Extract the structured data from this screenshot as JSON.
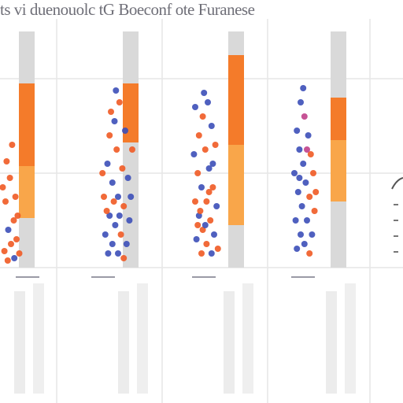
{
  "chart_data": {
    "type": "scatter",
    "title": "ts vi duenouolc tG Boeconf ote Furanese",
    "xlabel": "",
    "ylabel": "",
    "grid": true,
    "colors": {
      "bar_orange": "#f47b2a",
      "bar_light_orange": "#f9a64a",
      "bar_grey": "#d9d9d9",
      "dot_blue": "#3c4fb8",
      "dot_orange": "#f05a24",
      "dot_pink": "#c0408a",
      "grid": "#e6e6e6",
      "text": "#6f6f78"
    },
    "panels": [
      {
        "label": "",
        "bar_stack": [
          {
            "segment": "grey",
            "value": 0.22
          },
          {
            "segment": "orange",
            "value": 0.35
          },
          {
            "segment": "light_orange",
            "value": 0.22
          },
          {
            "segment": "grey",
            "value": 0.21
          }
        ],
        "dots": [
          [
            0.12,
            0.55,
            "o"
          ],
          [
            0.18,
            0.62,
            "o"
          ],
          [
            0.22,
            0.48,
            "o"
          ],
          [
            0.28,
            0.7,
            "o"
          ],
          [
            0.1,
            0.72,
            "o"
          ],
          [
            0.25,
            0.8,
            "o"
          ],
          [
            0.15,
            0.84,
            "b"
          ],
          [
            0.32,
            0.78,
            "o"
          ],
          [
            0.2,
            0.9,
            "o"
          ],
          [
            0.3,
            0.88,
            "o"
          ],
          [
            0.08,
            0.93,
            "o"
          ],
          [
            0.35,
            0.94,
            "o"
          ],
          [
            0.26,
            0.96,
            "b"
          ],
          [
            0.14,
            0.97,
            "o"
          ],
          [
            0.05,
            0.66,
            "o"
          ]
        ]
      },
      {
        "label": "",
        "bar_stack": [
          {
            "segment": "grey",
            "value": 0.22
          },
          {
            "segment": "orange",
            "value": 0.25
          },
          {
            "segment": "grey",
            "value": 0.53
          }
        ],
        "dots": [
          [
            0.55,
            0.38,
            "b"
          ],
          [
            0.62,
            0.3,
            "o"
          ],
          [
            0.48,
            0.44,
            "o"
          ],
          [
            0.7,
            0.42,
            "b"
          ],
          [
            0.58,
            0.5,
            "o"
          ],
          [
            0.45,
            0.56,
            "b"
          ],
          [
            0.66,
            0.58,
            "o"
          ],
          [
            0.52,
            0.64,
            "b"
          ],
          [
            0.74,
            0.62,
            "b"
          ],
          [
            0.4,
            0.7,
            "o"
          ],
          [
            0.6,
            0.7,
            "b"
          ],
          [
            0.68,
            0.74,
            "o"
          ],
          [
            0.48,
            0.78,
            "b"
          ],
          [
            0.56,
            0.82,
            "b"
          ],
          [
            0.76,
            0.8,
            "b"
          ],
          [
            0.42,
            0.86,
            "b"
          ],
          [
            0.64,
            0.86,
            "o"
          ],
          [
            0.52,
            0.9,
            "b"
          ],
          [
            0.72,
            0.9,
            "b"
          ],
          [
            0.46,
            0.94,
            "b"
          ],
          [
            0.6,
            0.94,
            "b"
          ],
          [
            0.68,
            0.96,
            "o"
          ],
          [
            0.38,
            0.6,
            "o"
          ],
          [
            0.8,
            0.5,
            "o"
          ],
          [
            0.57,
            0.25,
            "b"
          ],
          [
            0.5,
            0.34,
            "o"
          ],
          [
            0.78,
            0.7,
            "b"
          ],
          [
            0.44,
            0.76,
            "o"
          ],
          [
            0.62,
            0.78,
            "b"
          ],
          [
            0.54,
            0.72,
            "o"
          ]
        ]
      },
      {
        "label": "",
        "bar_stack": [
          {
            "segment": "grey",
            "value": 0.1
          },
          {
            "segment": "orange",
            "value": 0.38
          },
          {
            "segment": "light_orange",
            "value": 0.34
          },
          {
            "segment": "grey",
            "value": 0.18
          }
        ],
        "dots": [
          [
            0.3,
            0.32,
            "b"
          ],
          [
            0.42,
            0.36,
            "o"
          ],
          [
            0.5,
            0.3,
            "b"
          ],
          [
            0.36,
            0.44,
            "o"
          ],
          [
            0.56,
            0.4,
            "b"
          ],
          [
            0.28,
            0.52,
            "b"
          ],
          [
            0.46,
            0.5,
            "o"
          ],
          [
            0.62,
            0.48,
            "o"
          ],
          [
            0.34,
            0.6,
            "o"
          ],
          [
            0.52,
            0.58,
            "b"
          ],
          [
            0.4,
            0.66,
            "b"
          ],
          [
            0.58,
            0.66,
            "o"
          ],
          [
            0.3,
            0.72,
            "o"
          ],
          [
            0.48,
            0.72,
            "o"
          ],
          [
            0.64,
            0.74,
            "b"
          ],
          [
            0.36,
            0.78,
            "b"
          ],
          [
            0.54,
            0.8,
            "o"
          ],
          [
            0.42,
            0.84,
            "o"
          ],
          [
            0.6,
            0.86,
            "b"
          ],
          [
            0.32,
            0.88,
            "b"
          ],
          [
            0.48,
            0.9,
            "o"
          ],
          [
            0.56,
            0.94,
            "b"
          ],
          [
            0.4,
            0.94,
            "o"
          ],
          [
            0.66,
            0.92,
            "o"
          ],
          [
            0.44,
            0.26,
            "b"
          ],
          [
            0.38,
            0.76,
            "o"
          ],
          [
            0.52,
            0.68,
            "o"
          ],
          [
            0.46,
            0.82,
            "b"
          ],
          [
            0.58,
            0.56,
            "b"
          ],
          [
            0.34,
            0.82,
            "o"
          ]
        ]
      },
      {
        "label": "",
        "bar_stack": [
          {
            "segment": "grey",
            "value": 0.28
          },
          {
            "segment": "orange",
            "value": 0.18
          },
          {
            "segment": "light_orange",
            "value": 0.26
          },
          {
            "segment": "grey",
            "value": 0.28
          }
        ],
        "dots": [
          [
            0.4,
            0.3,
            "b"
          ],
          [
            0.46,
            0.36,
            "p"
          ],
          [
            0.34,
            0.42,
            "b"
          ],
          [
            0.52,
            0.44,
            "b"
          ],
          [
            0.38,
            0.5,
            "b"
          ],
          [
            0.56,
            0.52,
            "o"
          ],
          [
            0.44,
            0.56,
            "b"
          ],
          [
            0.3,
            0.6,
            "b"
          ],
          [
            0.6,
            0.6,
            "o"
          ],
          [
            0.48,
            0.64,
            "b"
          ],
          [
            0.36,
            0.68,
            "b"
          ],
          [
            0.54,
            0.7,
            "o"
          ],
          [
            0.42,
            0.74,
            "b"
          ],
          [
            0.62,
            0.76,
            "o"
          ],
          [
            0.32,
            0.8,
            "b"
          ],
          [
            0.5,
            0.8,
            "b"
          ],
          [
            0.4,
            0.86,
            "b"
          ],
          [
            0.58,
            0.86,
            "b"
          ],
          [
            0.46,
            0.9,
            "b"
          ],
          [
            0.34,
            0.92,
            "b"
          ],
          [
            0.54,
            0.94,
            "o"
          ],
          [
            0.64,
            0.68,
            "o"
          ],
          [
            0.44,
            0.24,
            "b"
          ],
          [
            0.5,
            0.5,
            "p"
          ],
          [
            0.38,
            0.62,
            "b"
          ]
        ]
      }
    ]
  }
}
